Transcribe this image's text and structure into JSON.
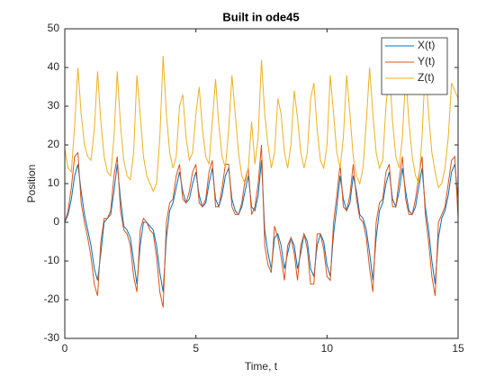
{
  "chart_data": {
    "type": "line",
    "title": "Built in ode45",
    "xlabel": "Time, t",
    "ylabel": "Position",
    "x": [
      0,
      0.125,
      0.25,
      0.375,
      0.5,
      0.625,
      0.75,
      0.875,
      1,
      1.125,
      1.25,
      1.375,
      1.5,
      1.625,
      1.75,
      1.875,
      2,
      2.125,
      2.25,
      2.375,
      2.5,
      2.625,
      2.75,
      2.875,
      3,
      3.125,
      3.25,
      3.375,
      3.5,
      3.625,
      3.75,
      3.875,
      4,
      4.125,
      4.25,
      4.375,
      4.5,
      4.625,
      4.75,
      4.875,
      5,
      5.125,
      5.25,
      5.375,
      5.5,
      5.625,
      5.75,
      5.875,
      6,
      6.125,
      6.25,
      6.375,
      6.5,
      6.625,
      6.75,
      6.875,
      7,
      7.125,
      7.25,
      7.375,
      7.5,
      7.625,
      7.75,
      7.875,
      8,
      8.125,
      8.25,
      8.375,
      8.5,
      8.625,
      8.75,
      8.875,
      9,
      9.125,
      9.25,
      9.375,
      9.5,
      9.625,
      9.75,
      9.875,
      10,
      10.125,
      10.25,
      10.375,
      10.5,
      10.625,
      10.75,
      10.875,
      11,
      11.125,
      11.25,
      11.375,
      11.5,
      11.625,
      11.75,
      11.875,
      12,
      12.125,
      12.25,
      12.375,
      12.5,
      12.625,
      12.75,
      12.875,
      13,
      13.125,
      13.25,
      13.375,
      13.5,
      13.625,
      13.75,
      13.875,
      14,
      14.125,
      14.25,
      14.375,
      14.5,
      14.625,
      14.75,
      14.875,
      15
    ],
    "series": [
      {
        "name": "X(t)",
        "color": "#0072bd",
        "values": [
          0,
          2,
          6,
          12,
          15,
          8,
          2,
          -2,
          -6,
          -12,
          -15,
          -8,
          0,
          1,
          2,
          8,
          15,
          6,
          -1,
          -2,
          -4,
          -10,
          -16,
          -6,
          0,
          0,
          -1,
          -2,
          -6,
          -13,
          -18,
          -4,
          3,
          5,
          9,
          13,
          8,
          5,
          6,
          10,
          13,
          7,
          4,
          5,
          10,
          14,
          6,
          4,
          7,
          12,
          14,
          6,
          3,
          2,
          4,
          8,
          12,
          4,
          3,
          7,
          16,
          -2,
          -8,
          -12,
          -4,
          -3,
          -6,
          -12,
          -8,
          -4,
          -6,
          -12,
          -8,
          -3,
          -5,
          -12,
          -14,
          -6,
          -3,
          -5,
          -11,
          -14,
          -3,
          4,
          12,
          6,
          3,
          5,
          12,
          8,
          2,
          1,
          -2,
          -8,
          -15,
          -4,
          3,
          5,
          10,
          13,
          6,
          4,
          8,
          14,
          8,
          3,
          2,
          4,
          9,
          14,
          4,
          -2,
          -10,
          -16,
          -4,
          1,
          3,
          7,
          13,
          15,
          6
        ]
      },
      {
        "name": "Y(t)",
        "color": "#d95319",
        "values": [
          0,
          3,
          9,
          17,
          18,
          5,
          0,
          -4,
          -9,
          -16,
          -19,
          -5,
          1,
          1,
          3,
          12,
          17,
          3,
          -2,
          -3,
          -6,
          -14,
          -18,
          -2,
          1,
          0,
          -2,
          -3,
          -9,
          -18,
          -22,
          0,
          5,
          6,
          12,
          15,
          6,
          5,
          8,
          13,
          15,
          5,
          4,
          6,
          13,
          16,
          4,
          4,
          9,
          15,
          15,
          4,
          2,
          2,
          5,
          11,
          14,
          2,
          4,
          10,
          20,
          -6,
          -11,
          -13,
          -1,
          -4,
          -9,
          -15,
          -6,
          -4,
          -8,
          -15,
          -6,
          -3,
          -7,
          -16,
          -16,
          -3,
          -3,
          -7,
          -14,
          -15,
          0,
          7,
          15,
          4,
          3,
          7,
          15,
          6,
          1,
          0,
          -4,
          -12,
          -18,
          0,
          5,
          6,
          13,
          15,
          4,
          4,
          11,
          17,
          6,
          2,
          2,
          6,
          12,
          17,
          2,
          -5,
          -14,
          -19,
          0,
          2,
          4,
          10,
          16,
          17,
          1
        ]
      },
      {
        "name": "Z(t)",
        "color": "#edb120",
        "values": [
          19,
          14,
          13,
          25,
          40,
          28,
          20,
          17,
          16,
          24,
          39,
          26,
          17,
          13,
          12,
          22,
          39,
          25,
          16,
          12,
          11,
          18,
          38,
          28,
          17,
          12,
          10,
          8,
          10,
          22,
          43,
          28,
          18,
          14,
          17,
          30,
          33,
          22,
          16,
          18,
          28,
          35,
          24,
          17,
          15,
          26,
          37,
          25,
          17,
          14,
          24,
          38,
          28,
          18,
          12,
          10,
          14,
          26,
          15,
          22,
          42,
          28,
          20,
          14,
          18,
          32,
          28,
          18,
          14,
          20,
          34,
          27,
          18,
          14,
          18,
          32,
          36,
          24,
          16,
          14,
          20,
          38,
          28,
          18,
          14,
          22,
          38,
          28,
          17,
          12,
          10,
          14,
          26,
          40,
          28,
          18,
          14,
          16,
          30,
          40,
          26,
          17,
          14,
          22,
          38,
          26,
          17,
          12,
          10,
          22,
          41,
          28,
          18,
          13,
          9,
          10,
          14,
          22,
          36,
          34,
          32
        ]
      }
    ],
    "xlim": [
      0,
      15
    ],
    "xticks": [
      0,
      5,
      10,
      15
    ],
    "ylim": [
      -30,
      50
    ],
    "yticks": [
      -30,
      -20,
      -10,
      0,
      10,
      20,
      30,
      40,
      50
    ],
    "legend": "upper right",
    "grid": false
  }
}
